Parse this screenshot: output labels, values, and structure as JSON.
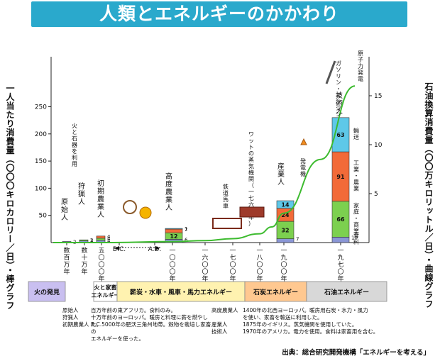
{
  "title": "人類とエネルギーのかかわり",
  "left_axis_title": "一人当たり消費量（〇〇〇キロカロリー／日）・棒グラフ",
  "right_axis_title": "石油換算消費量（〇〇万キロリットル／日）・曲線グラフ",
  "chart_data": {
    "type": "bar",
    "categories": [
      "数百万年",
      "数十万年",
      "五〇〇〇年",
      "B.C.",
      "A.D.",
      "一〇〇〇年",
      "一六〇〇年",
      "一七〇〇年",
      "一八〇〇年",
      "一九〇〇年",
      "一九七〇年"
    ],
    "left_axis": {
      "label": "一人当たり消費量（〇〇〇キロカロリー／日）・棒グラフ",
      "ticks": [
        50,
        100,
        150,
        200,
        250
      ],
      "range": [
        0,
        280
      ]
    },
    "right_axis": {
      "label": "石油換算消費量（〇〇万キロリットル／日）・曲線グラフ",
      "ticks": [
        5,
        10,
        15
      ],
      "range": [
        0,
        16
      ]
    },
    "bars": [
      {
        "label": "原始人",
        "category": "数百万年",
        "segments": [
          {
            "component": "食料",
            "value": 2,
            "label": "2"
          }
        ]
      },
      {
        "label": "狩猟人",
        "category": "数十万年",
        "segments": [
          {
            "component": "食料",
            "value": 3,
            "label": "3"
          },
          {
            "component": "家庭・商業",
            "value": 2,
            "label": "2"
          }
        ]
      },
      {
        "label": "初期農業人",
        "category": "五〇〇〇年",
        "segments": [
          {
            "component": "食料",
            "value": 4,
            "label": "4"
          },
          {
            "component": "家庭・商業",
            "value": 4,
            "label": "4"
          },
          {
            "component": "工業・農業",
            "value": 4,
            "label": "4"
          }
        ]
      },
      {
        "label": "高度農業人",
        "category": "一〇〇〇年",
        "segments": [
          {
            "component": "食料",
            "value": 6,
            "label": "6"
          },
          {
            "component": "家庭・商業",
            "value": 12,
            "label": "12"
          },
          {
            "component": "工業・農業",
            "value": 7,
            "label": "7"
          },
          {
            "component": "輸送",
            "value": 1,
            "label": "1"
          }
        ]
      },
      {
        "label": "産業人",
        "category": "一八七五年",
        "segments": [
          {
            "component": "食料",
            "value": 7,
            "label": "7"
          },
          {
            "component": "家庭・商業",
            "value": 32,
            "label": "32"
          },
          {
            "component": "工業・農業",
            "value": 24,
            "label": "24"
          },
          {
            "component": "輸送",
            "value": 14,
            "label": "14"
          }
        ]
      },
      {
        "label": "技術人",
        "category": "一九七〇年",
        "segments": [
          {
            "component": "食料",
            "value": 10,
            "label": "10"
          },
          {
            "component": "家庭・商業",
            "value": 66,
            "label": "66"
          },
          {
            "component": "工業・農業",
            "value": 91,
            "label": "91"
          },
          {
            "component": "輸送",
            "value": 63,
            "label": "63"
          }
        ]
      }
    ],
    "component_labels": [
      "輸送",
      "工業・農業",
      "家庭・商業",
      "食料"
    ],
    "colors": {
      "食料": "#8a96d6",
      "家庭・商業": "#7cd04f",
      "工業・農業": "#f26a38",
      "輸送": "#5ec8e8",
      "curve": "#3dbb2f"
    },
    "curve": {
      "name": "石油換算消費量",
      "x": [
        "数百万年",
        "五〇〇〇年",
        "一〇〇〇年",
        "一六〇〇年",
        "一七〇〇年",
        "一八〇〇年",
        "一八五〇年",
        "一九〇〇年",
        "一九五〇年",
        "一九七〇年"
      ],
      "values": [
        0,
        0,
        0.1,
        0.2,
        0.4,
        0.9,
        1.6,
        3,
        8.5,
        16
      ]
    },
    "annotations": [
      "火と石器を利用",
      "鉄道馬車",
      "ワットの蒸気機関（一七六九年）",
      "発電機",
      "ガソリン・エンジン",
      "原子力発電"
    ]
  },
  "eras": [
    {
      "label": "火の発見",
      "color": "#c9bff0"
    },
    {
      "label": "火と家畜エネルギー",
      "color": "#ffffff"
    },
    {
      "label": "薪炭・水車・風車・馬力エネルギー",
      "color": "#fff2b0"
    },
    {
      "label": "石炭エネルギー",
      "color": "#ffc890"
    },
    {
      "label": "石油エネルギー",
      "color": "#d8d8d8"
    }
  ],
  "notes_left": [
    {
      "term": "原始人",
      "desc": "百万年前の東アフリカ。食料のみ。"
    },
    {
      "term": "狩猟人",
      "desc": "十万年前のヨーロッパ。暖房と料理に薪を燃やした。"
    },
    {
      "term": "初期農業人",
      "desc": "B.C.5000年の肥沃三角州地帯。穀物を栽培し家畜の\nエネルギーを使った。"
    }
  ],
  "notes_right": [
    {
      "term": "高度農業人",
      "desc": "1400年の北西ヨーロッパ。暖房用石炭・水力・風力\nを使い、家畜を輸送に利用した。"
    },
    {
      "term": "産業人",
      "desc": "1875年のイギリス。蒸気機関を使用していた。"
    },
    {
      "term": "技術人",
      "desc": "1970年のアメリカ。電力を使用。食料は家畜用を含む。"
    }
  ],
  "source": "出典：総合研究開発機構「エネルギーを考える」"
}
